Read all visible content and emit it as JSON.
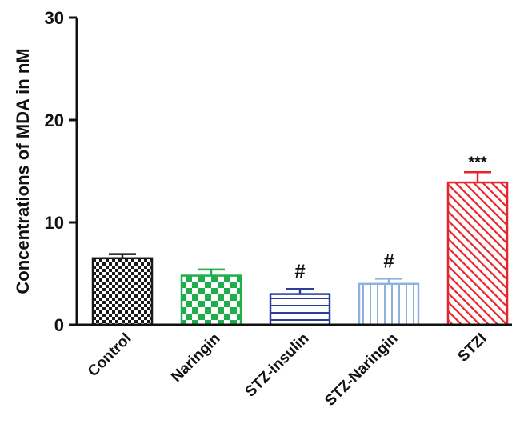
{
  "chart_data": {
    "type": "bar",
    "title": "",
    "xlabel": "",
    "ylabel": "Concentrations of MDA in nM",
    "ylim": [
      0,
      30
    ],
    "yticks": [
      0,
      10,
      20,
      30
    ],
    "grid": false,
    "categories": [
      "Control",
      "Naringin",
      "STZ-insulin",
      "STZ-Naringin",
      "STZI"
    ],
    "values": [
      6.5,
      4.8,
      3.0,
      4.0,
      13.9
    ],
    "errors": [
      0.4,
      0.6,
      0.5,
      0.5,
      1.0
    ],
    "annotations": [
      "",
      "",
      "#",
      "#",
      "***"
    ],
    "colors": [
      "#1a1a1a",
      "#1fae4a",
      "#2a3f9a",
      "#8fb1de",
      "#e8242b"
    ],
    "patterns": [
      "checker-small",
      "checker-large",
      "horizontal-lines",
      "vertical-lines",
      "diagonal-lines"
    ]
  }
}
